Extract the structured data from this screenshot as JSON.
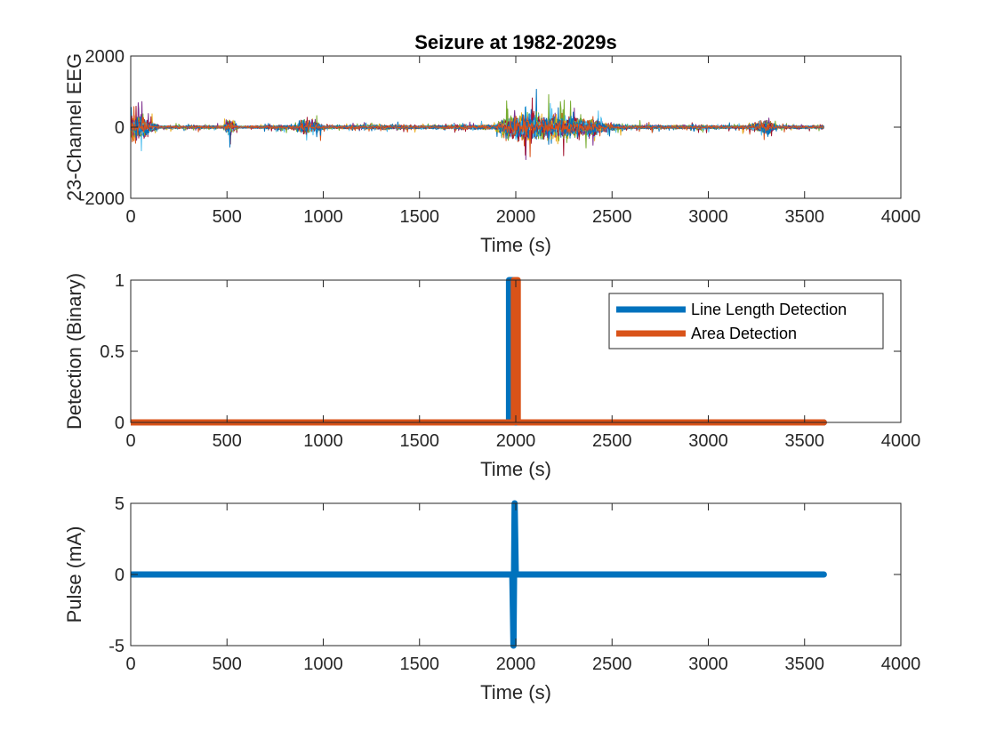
{
  "figure": {
    "background": "#ffffff",
    "axis_color": "#262626"
  },
  "chart_data": [
    {
      "type": "line",
      "title": "Seizure at 1982-2029s",
      "xlabel": "Time (s)",
      "ylabel": "23-Channel EEG",
      "xlim": [
        0,
        4000
      ],
      "ylim": [
        -2000,
        2000
      ],
      "xticks": [
        0,
        500,
        1000,
        1500,
        2000,
        2500,
        3000,
        3500,
        4000
      ],
      "yticks": [
        -2000,
        0,
        2000
      ],
      "grid": false,
      "series_count": 23,
      "series_colors": [
        "#0072BD",
        "#D95319",
        "#EDB120",
        "#7E2F8E",
        "#77AC30",
        "#4DBEEE",
        "#A2142F"
      ],
      "x_range": [
        0,
        3600
      ],
      "amplitude_envelope": [
        {
          "x": 0,
          "amp": 1400
        },
        {
          "x": 60,
          "amp": 1300
        },
        {
          "x": 150,
          "amp": 200
        },
        {
          "x": 480,
          "amp": 200
        },
        {
          "x": 510,
          "amp": 1000
        },
        {
          "x": 560,
          "amp": 150
        },
        {
          "x": 850,
          "amp": 250
        },
        {
          "x": 900,
          "amp": 900
        },
        {
          "x": 960,
          "amp": 700
        },
        {
          "x": 1010,
          "amp": 200
        },
        {
          "x": 1300,
          "amp": 300
        },
        {
          "x": 1500,
          "amp": 200
        },
        {
          "x": 1890,
          "amp": 300
        },
        {
          "x": 1960,
          "amp": 1500
        },
        {
          "x": 2050,
          "amp": 1800
        },
        {
          "x": 2150,
          "amp": 1400
        },
        {
          "x": 2250,
          "amp": 1300
        },
        {
          "x": 2400,
          "amp": 1100
        },
        {
          "x": 2500,
          "amp": 400
        },
        {
          "x": 2600,
          "amp": 250
        },
        {
          "x": 3200,
          "amp": 200
        },
        {
          "x": 3310,
          "amp": 900
        },
        {
          "x": 3360,
          "amp": 200
        },
        {
          "x": 3600,
          "amp": 200
        }
      ]
    },
    {
      "type": "line",
      "title": "",
      "xlabel": "Time (s)",
      "ylabel": "Detection (Binary)",
      "xlim": [
        0,
        4000
      ],
      "ylim": [
        0,
        1
      ],
      "xticks": [
        0,
        500,
        1000,
        1500,
        2000,
        2500,
        3000,
        3500,
        4000
      ],
      "yticks": [
        0,
        0.5,
        1
      ],
      "grid": false,
      "legend_position": "top-right",
      "series": [
        {
          "name": "Line Length Detection",
          "color": "#0072BD",
          "x": [
            0,
            1965,
            1965,
            1985,
            1985,
            3600
          ],
          "y": [
            0,
            0,
            1,
            1,
            0,
            0
          ]
        },
        {
          "name": "Area Detection",
          "color": "#D95319",
          "x": [
            0,
            1990,
            1990,
            2010,
            2010,
            3600
          ],
          "y": [
            0,
            0,
            1,
            1,
            0,
            0
          ]
        }
      ]
    },
    {
      "type": "line",
      "title": "",
      "xlabel": "Time (s)",
      "ylabel": "Pulse (mA)",
      "xlim": [
        0,
        4000
      ],
      "ylim": [
        -5,
        5
      ],
      "xticks": [
        0,
        500,
        1000,
        1500,
        2000,
        2500,
        3000,
        3500,
        4000
      ],
      "yticks": [
        -5,
        0,
        5
      ],
      "grid": false,
      "series": [
        {
          "color": "#0072BD",
          "x": [
            0,
            1982,
            1988,
            1994,
            2000,
            3600
          ],
          "y": [
            0,
            0,
            -5,
            5,
            0,
            0
          ]
        }
      ]
    }
  ]
}
